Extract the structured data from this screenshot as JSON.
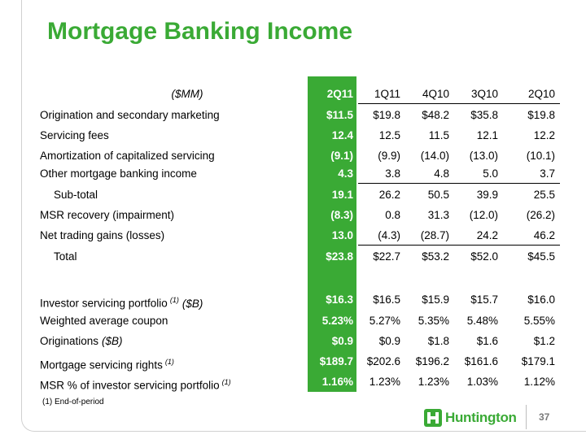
{
  "title": "Mortgage Banking Income",
  "header": {
    "units": "($MM)",
    "cols": [
      "2Q11",
      "1Q11",
      "4Q10",
      "3Q10",
      "2Q10"
    ]
  },
  "rows": [
    {
      "label": "Origination and secondary marketing",
      "values": [
        "$11.5",
        "$19.8",
        "$48.2",
        "$35.8",
        "$19.8"
      ]
    },
    {
      "label": "Servicing fees",
      "values": [
        "12.4",
        "12.5",
        "11.5",
        "12.1",
        "12.2"
      ]
    },
    {
      "label": "Amortization of capitalized servicing",
      "values": [
        "(9.1)",
        "(9.9)",
        "(14.0)",
        "(13.0)",
        "(10.1)"
      ]
    },
    {
      "label": "Other mortgage banking income",
      "values": [
        "4.3",
        "3.8",
        "4.8",
        "5.0",
        "3.7"
      ]
    },
    {
      "label": "Sub-total",
      "values": [
        "19.1",
        "26.2",
        "50.5",
        "39.9",
        "25.5"
      ]
    },
    {
      "label": "MSR recovery (impairment)",
      "values": [
        "(8.3)",
        "0.8",
        "31.3",
        "(12.0)",
        "(26.2)"
      ]
    },
    {
      "label": "Net trading gains (losses)",
      "values": [
        "13.0",
        "(4.3)",
        "(28.7)",
        "24.2",
        "46.2"
      ]
    },
    {
      "label": "Total",
      "values": [
        "$23.8",
        "$22.7",
        "$53.2",
        "$52.0",
        "$45.5"
      ]
    },
    {
      "label": "Investor servicing portfolio",
      "sup": "(1)",
      "suffix": "($B)",
      "values": [
        "$16.3",
        "$16.5",
        "$15.9",
        "$15.7",
        "$16.0"
      ]
    },
    {
      "label": "Weighted average coupon",
      "values": [
        "5.23%",
        "5.27%",
        "5.35%",
        "5.48%",
        "5.55%"
      ]
    },
    {
      "label": "Originations",
      "suffix": "($B)",
      "values": [
        "$0.9",
        "$0.9",
        "$1.8",
        "$1.6",
        "$1.2"
      ]
    },
    {
      "label": "Mortgage servicing rights",
      "sup": "(1)",
      "values": [
        "$189.7",
        "$202.6",
        "$196.2",
        "$161.6",
        "$179.1"
      ]
    },
    {
      "label": "MSR % of investor servicing portfolio",
      "sup": "(1)",
      "values": [
        "1.16%",
        "1.23%",
        "1.23%",
        "1.03%",
        "1.12%"
      ]
    }
  ],
  "footnote": "(1)   End-of-period",
  "logo_text": "Huntington",
  "page_number": "37",
  "colors": {
    "accent": "#3aaa35",
    "text": "#000000"
  }
}
